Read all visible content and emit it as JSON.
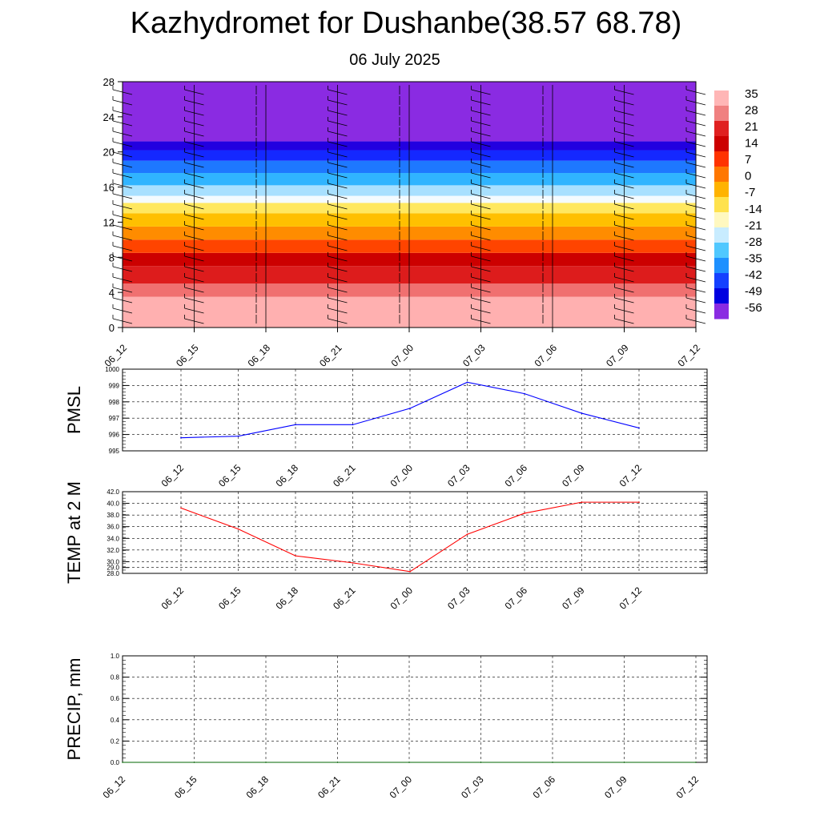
{
  "header": {
    "title": "Kazhydromet for Dushanbe(38.57 68.78)",
    "date": "06 July 2025"
  },
  "colors": {
    "pmsl_line": "#0000ff",
    "temp_line": "#ff0000",
    "precip_line": "#006400",
    "colorbar": [
      "#ffb6b6",
      "#f08080",
      "#e02020",
      "#cc0000",
      "#ff3300",
      "#ff7700",
      "#ffb300",
      "#ffe24d",
      "#fff8c0",
      "#c8ecff",
      "#50c8ff",
      "#1e90ff",
      "#1440ff",
      "#0000e0",
      "#8a2be2"
    ]
  },
  "chart_data": [
    {
      "type": "heatmap",
      "name": "cross-section",
      "x": [
        "06_12",
        "06_15",
        "06_18",
        "06_21",
        "07_00",
        "07_03",
        "07_06",
        "07_09",
        "07_12"
      ],
      "yticks": [
        0,
        4,
        8,
        12,
        16,
        20,
        24,
        28
      ],
      "ylim": [
        0,
        28
      ],
      "colorbar_labels": [
        "35",
        "28",
        "21",
        "14",
        "7",
        "0",
        "-7",
        "-14",
        "-21",
        "-28",
        "-35",
        "-42",
        "-49",
        "-56"
      ],
      "layers": [
        {
          "color": "#ffb0b0",
          "y_top": 3.5
        },
        {
          "color": "#f07070",
          "y_top": 5.0
        },
        {
          "color": "#dd1c1c",
          "y_top": 7.0
        },
        {
          "color": "#cc0000",
          "y_top": 8.5
        },
        {
          "color": "#ff4400",
          "y_top": 10.0
        },
        {
          "color": "#ff8c00",
          "y_top": 11.5
        },
        {
          "color": "#ffc000",
          "y_top": 13.0
        },
        {
          "color": "#ffe860",
          "y_top": 14.2
        },
        {
          "color": "#f4fbff",
          "y_top": 15.0
        },
        {
          "color": "#a8e0ff",
          "y_top": 16.2
        },
        {
          "color": "#30b4ff",
          "y_top": 17.6
        },
        {
          "color": "#1e78ff",
          "y_top": 19.0
        },
        {
          "color": "#1428ff",
          "y_top": 20.2
        },
        {
          "color": "#2200e0",
          "y_top": 21.2
        },
        {
          "color": "#8a2be2",
          "y_top": 28.0
        }
      ],
      "wind_barbs": "present"
    },
    {
      "type": "line",
      "name": "pmsl",
      "ylabel": "PMSL",
      "x": [
        "06_12",
        "06_15",
        "06_18",
        "06_21",
        "07_00",
        "07_03",
        "07_06",
        "07_09",
        "07_12"
      ],
      "values": [
        995.8,
        995.9,
        996.6,
        996.6,
        997.6,
        999.2,
        998.5,
        997.3,
        996.4
      ],
      "ylim": [
        995,
        1000
      ],
      "yticks": [
        "995",
        "996",
        "997",
        "998",
        "999",
        "1000"
      ],
      "grid": true
    },
    {
      "type": "line",
      "name": "temp",
      "ylabel": "TEMP at 2 M",
      "x": [
        "06_12",
        "06_15",
        "06_18",
        "06_21",
        "07_00",
        "07_03",
        "07_06",
        "07_09",
        "07_12"
      ],
      "values": [
        39.2,
        35.6,
        31.0,
        29.8,
        28.3,
        34.7,
        38.3,
        40.2,
        40.2
      ],
      "ylim": [
        28,
        42
      ],
      "yticks": [
        "28.0",
        "29.0",
        "30.0",
        "32.0",
        "34.0",
        "36.0",
        "38.0",
        "40.0",
        "42.0"
      ],
      "grid": true
    },
    {
      "type": "line",
      "name": "precip",
      "ylabel": "PRECIP, mm",
      "x": [
        "06_12",
        "06_15",
        "06_18",
        "06_21",
        "07_00",
        "07_03",
        "07_06",
        "07_09",
        "07_12"
      ],
      "values": [
        0,
        0,
        0,
        0,
        0,
        0,
        0,
        0,
        0
      ],
      "ylim": [
        0,
        1
      ],
      "yticks": [
        "0.0",
        "0.2",
        "0.4",
        "0.6",
        "0.8",
        "1.0"
      ],
      "grid": true
    }
  ]
}
